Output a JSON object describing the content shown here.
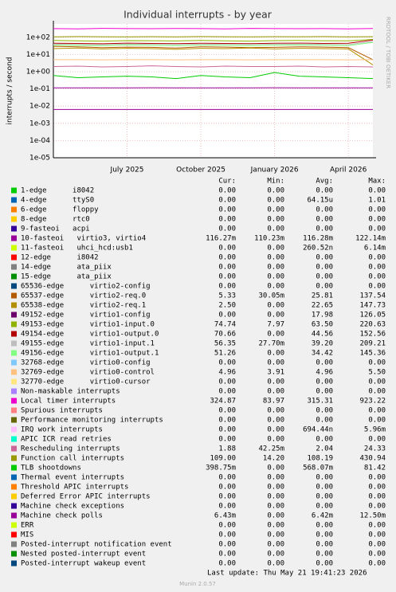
{
  "chart_data": {
    "type": "line",
    "title": "Individual interrupts - by year",
    "y_label": "interrupts / second",
    "side_text": "RRDTOOL / TOBI OETIKER",
    "log_scale": true,
    "grid": true,
    "categories": [
      null,
      null,
      null,
      "July 2025",
      null,
      null,
      "October 2025",
      null,
      null,
      "January 2026",
      null,
      null,
      "April 2026",
      null
    ],
    "ylim": [
      1e-05,
      600
    ],
    "yticks": [
      {
        "value": 100,
        "label": "1e+02"
      },
      {
        "value": 10,
        "label": "1e+01"
      },
      {
        "value": 1,
        "label": "1e+00"
      },
      {
        "value": 0.1,
        "label": "1e-01"
      },
      {
        "value": 0.01,
        "label": "1e-02"
      },
      {
        "value": 0.001,
        "label": "1e-03"
      },
      {
        "value": 0.0001,
        "label": "1e-04"
      },
      {
        "value": 1e-05,
        "label": "1e-05"
      }
    ],
    "columns": [
      "Cur:",
      "Min:",
      "Avg:",
      "Max:"
    ],
    "series": [
      {
        "name": "1-edge      i8042",
        "color": "#00CC00",
        "stats": [
          "0.00",
          "0.00",
          "0.00",
          "0.00"
        ]
      },
      {
        "name": "4-edge      ttyS0",
        "color": "#0066B3",
        "stats": [
          "0.00",
          "0.00",
          "64.15u",
          "1.01"
        ]
      },
      {
        "name": "6-edge      floppy",
        "color": "#FF8000",
        "stats": [
          "0.00",
          "0.00",
          "0.00",
          "0.00"
        ]
      },
      {
        "name": "8-edge      rtc0",
        "color": "#FFCC00",
        "stats": [
          "0.00",
          "0.00",
          "0.00",
          "0.00"
        ]
      },
      {
        "name": "9-fasteoi   acpi",
        "color": "#330099",
        "stats": [
          "0.00",
          "0.00",
          "0.00",
          "0.00"
        ]
      },
      {
        "name": "10-fasteoi   virtio3, virtio4",
        "color": "#990099",
        "stats": [
          "116.27m",
          "110.23m",
          "116.28m",
          "122.14m"
        ],
        "values": [
          0.116,
          0.116,
          0.115,
          0.116,
          0.117,
          0.116,
          0.116,
          0.115,
          0.116,
          0.117,
          0.116,
          0.116,
          0.116,
          0.116
        ]
      },
      {
        "name": "11-fasteoi   uhci_hcd:usb1",
        "color": "#CCFF00",
        "stats": [
          "0.00",
          "0.00",
          "260.52n",
          "6.14m"
        ]
      },
      {
        "name": "12-edge      i8042",
        "color": "#FF0000",
        "stats": [
          "0.00",
          "0.00",
          "0.00",
          "0.00"
        ]
      },
      {
        "name": "14-edge      ata_piix",
        "color": "#808080",
        "stats": [
          "0.00",
          "0.00",
          "0.00",
          "0.00"
        ]
      },
      {
        "name": "15-edge      ata_piix",
        "color": "#008F00",
        "stats": [
          "0.00",
          "0.00",
          "0.00",
          "0.00"
        ]
      },
      {
        "name": "65536-edge      virtio2-config",
        "color": "#00487D",
        "stats": [
          "0.00",
          "0.00",
          "0.00",
          "0.00"
        ]
      },
      {
        "name": "65537-edge      virtio2-req.0",
        "color": "#B35A00",
        "stats": [
          "5.33",
          "30.05m",
          "25.81",
          "137.54"
        ],
        "values": [
          30,
          28,
          25,
          27,
          26,
          24,
          28,
          27,
          25,
          26,
          28,
          27,
          25,
          5
        ]
      },
      {
        "name": "65538-edge      virtio2-req.1",
        "color": "#B38F00",
        "stats": [
          "2.50",
          "0.00",
          "22.65",
          "147.73"
        ],
        "values": [
          22,
          24,
          21,
          23,
          22,
          20,
          23,
          22,
          24,
          21,
          23,
          22,
          21,
          2.5
        ]
      },
      {
        "name": "49152-edge      virtio1-config",
        "color": "#6B006B",
        "stats": [
          "0.00",
          "0.00",
          "17.98",
          "126.05"
        ]
      },
      {
        "name": "49153-edge      virtio1-input.0",
        "color": "#8FB300",
        "stats": [
          "74.74",
          "7.97",
          "63.50",
          "220.63"
        ],
        "values": [
          65,
          62,
          60,
          64,
          63,
          61,
          66,
          62,
          60,
          64,
          65,
          63,
          62,
          75
        ]
      },
      {
        "name": "49154-edge      virtio1-output.0",
        "color": "#B30000",
        "stats": [
          "70.66",
          "0.00",
          "44.56",
          "152.56"
        ],
        "values": [
          45,
          44,
          42,
          46,
          44,
          43,
          45,
          44,
          43,
          45,
          46,
          44,
          45,
          70
        ]
      },
      {
        "name": "49155-edge      virtio1-input.1",
        "color": "#BEBEBE",
        "stats": [
          "56.35",
          "27.70m",
          "39.20",
          "209.21"
        ],
        "values": [
          40,
          38,
          37,
          41,
          39,
          38,
          40,
          39,
          38,
          40,
          41,
          39,
          38,
          56
        ]
      },
      {
        "name": "49156-edge      virtio1-output.1",
        "color": "#80FF80",
        "stats": [
          "51.26",
          "0.00",
          "34.42",
          "145.36"
        ],
        "values": [
          35,
          34,
          33,
          36,
          34,
          33,
          35,
          34,
          33,
          35,
          36,
          34,
          33,
          51
        ]
      },
      {
        "name": "32768-edge      virtio0-config",
        "color": "#80C9FF",
        "stats": [
          "0.00",
          "0.00",
          "0.00",
          "0.00"
        ]
      },
      {
        "name": "32769-edge      virtio0-control",
        "color": "#FFC080",
        "stats": [
          "4.96",
          "3.91",
          "4.96",
          "5.50"
        ],
        "values": [
          5,
          5,
          4.9,
          5,
          5,
          4.9,
          5,
          5,
          4.9,
          5,
          5,
          5,
          4.9,
          5
        ]
      },
      {
        "name": "32770-edge      virtio0-cursor",
        "color": "#FFE680",
        "stats": [
          "0.00",
          "0.00",
          "0.00",
          "0.00"
        ]
      },
      {
        "name": "Non-maskable interrupts",
        "color": "#AA80FF",
        "stats": [
          "0.00",
          "0.00",
          "0.00",
          "0.00"
        ]
      },
      {
        "name": "Local timer interrupts",
        "color": "#EE00CC",
        "stats": [
          "324.87",
          "83.97",
          "315.31",
          "923.22"
        ],
        "values": [
          320,
          310,
          330,
          320,
          315,
          325,
          320,
          310,
          330,
          320,
          315,
          320,
          310,
          325
        ]
      },
      {
        "name": "Spurious interrupts",
        "color": "#FF8080",
        "stats": [
          "0.00",
          "0.00",
          "0.00",
          "0.00"
        ]
      },
      {
        "name": "Performance monitoring interrupts",
        "color": "#666600",
        "stats": [
          "0.00",
          "0.00",
          "0.00",
          "0.00"
        ]
      },
      {
        "name": "IRQ work interrupts",
        "color": "#FFBFFF",
        "stats": [
          "0.00",
          "0.00",
          "694.44n",
          "5.96m"
        ]
      },
      {
        "name": "APIC ICR read retries",
        "color": "#00FFCC",
        "stats": [
          "0.00",
          "0.00",
          "0.00",
          "0.00"
        ]
      },
      {
        "name": "Rescheduling interrupts",
        "color": "#CC6699",
        "stats": [
          "1.88",
          "42.25m",
          "2.04",
          "24.33"
        ],
        "values": [
          2,
          2.1,
          1.9,
          2,
          2.2,
          2,
          1.9,
          2.1,
          2,
          2,
          2.1,
          1.9,
          2,
          1.9
        ]
      },
      {
        "name": "Function call interrupts",
        "color": "#999900",
        "stats": [
          "109.00",
          "14.20",
          "108.19",
          "430.94"
        ],
        "values": [
          105,
          110,
          108,
          106,
          109,
          107,
          110,
          108,
          106,
          109,
          108,
          110,
          107,
          109
        ]
      },
      {
        "name": "TLB shootdowns",
        "color": "#00CC00",
        "stats": [
          "398.75m",
          "0.00",
          "568.07m",
          "81.42"
        ],
        "values": [
          0.6,
          0.45,
          0.5,
          0.55,
          0.5,
          0.4,
          0.6,
          0.5,
          0.45,
          0.9,
          0.55,
          0.5,
          0.45,
          0.4
        ]
      },
      {
        "name": "Thermal event interrupts",
        "color": "#0066B3",
        "stats": [
          "0.00",
          "0.00",
          "0.00",
          "0.00"
        ]
      },
      {
        "name": "Threshold APIC interrupts",
        "color": "#FF8000",
        "stats": [
          "0.00",
          "0.00",
          "0.00",
          "0.00"
        ]
      },
      {
        "name": "Deferred Error APIC interrupts",
        "color": "#FFCC00",
        "stats": [
          "0.00",
          "0.00",
          "0.00",
          "0.00"
        ]
      },
      {
        "name": "Machine check exceptions",
        "color": "#330099",
        "stats": [
          "0.00",
          "0.00",
          "0.00",
          "0.00"
        ]
      },
      {
        "name": "Machine check polls",
        "color": "#990099",
        "stats": [
          "6.43m",
          "0.00",
          "6.42m",
          "12.50m"
        ],
        "values": [
          0.0064,
          0.0064,
          0.0064,
          0.0064,
          0.0064,
          0.0064,
          0.0064,
          0.0064,
          0.0064,
          0.0064,
          0.0064,
          0.0064,
          0.0064,
          0.0064
        ]
      },
      {
        "name": "ERR",
        "color": "#CCFF00",
        "stats": [
          "0.00",
          "0.00",
          "0.00",
          "0.00"
        ]
      },
      {
        "name": "MIS",
        "color": "#FF0000",
        "stats": [
          "0.00",
          "0.00",
          "0.00",
          "0.00"
        ]
      },
      {
        "name": "Posted-interrupt notification event",
        "color": "#808080",
        "stats": [
          "0.00",
          "0.00",
          "0.00",
          "0.00"
        ]
      },
      {
        "name": "Nested posted-interrupt event",
        "color": "#008F00",
        "stats": [
          "0.00",
          "0.00",
          "0.00",
          "0.00"
        ]
      },
      {
        "name": "Posted-interrupt wakeup event",
        "color": "#00487D",
        "stats": [
          "0.00",
          "0.00",
          "0.00",
          "0.00"
        ]
      }
    ],
    "last_update": "Last update: Thu May 21 19:41:23 2026",
    "footer": "Munin 2.0.57"
  }
}
